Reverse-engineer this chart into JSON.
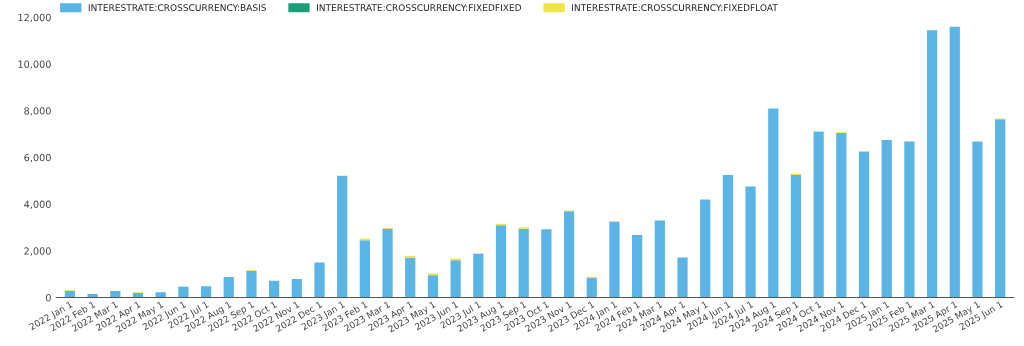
{
  "chart_data": {
    "type": "bar",
    "stacked": true,
    "legend": "top left",
    "grid": false,
    "categories": [
      "2022 Jan 1",
      "2022 Feb 1",
      "2022 Mar 1",
      "2022 Apr 1",
      "2022 May 1",
      "2022 Jun 1",
      "2022 Jul 1",
      "2022 Aug 1",
      "2022 Sep 1",
      "2022 Oct 1",
      "2022 Nov 1",
      "2022 Dec 1",
      "2023 Jan 1",
      "2023 Feb 1",
      "2023 Mar 1",
      "2023 Apr 1",
      "2023 May 1",
      "2023 Jun 1",
      "2023 Jul 1",
      "2023 Aug 1",
      "2023 Sep 1",
      "2023 Oct 1",
      "2023 Nov 1",
      "2023 Dec 1",
      "2024 Jan 1",
      "2024 Feb 1",
      "2024 Mar 1",
      "2024 Apr 1",
      "2024 May 1",
      "2024 Jun 1",
      "2024 Jul 1",
      "2024 Aug 1",
      "2024 Sep 1",
      "2024 Oct 1",
      "2024 Nov 1",
      "2024 Dec 1",
      "2025 Jan 1",
      "2025 Feb 1",
      "2025 Mar 1",
      "2025 Apr 1",
      "2025 May 1",
      "2025 Jun 1"
    ],
    "series": [
      {
        "name": "INTERESTRATE:CROSSCURRENCY:BASIS",
        "color": "#5ab4e6",
        "values": [
          280,
          150,
          280,
          170,
          230,
          460,
          480,
          880,
          1150,
          720,
          800,
          1500,
          5200,
          2450,
          2950,
          1700,
          950,
          1600,
          1870,
          3100,
          2950,
          2920,
          3700,
          850,
          3250,
          2680,
          3300,
          1720,
          4200,
          5250,
          4750,
          8100,
          5250,
          7100,
          7050,
          6250,
          6750,
          6680,
          11450,
          11600,
          6680,
          7630
        ]
      },
      {
        "name": "INTERESTRATE:CROSSCURRENCY:FIXEDFIXED",
        "color": "#1a9e77",
        "values": [
          null,
          null,
          null,
          20,
          null,
          null,
          null,
          null,
          null,
          null,
          null,
          null,
          null,
          null,
          null,
          null,
          null,
          null,
          null,
          null,
          null,
          null,
          null,
          null,
          null,
          null,
          null,
          null,
          null,
          null,
          null,
          null,
          null,
          null,
          null,
          null,
          null,
          null,
          null,
          null,
          null,
          null
        ]
      },
      {
        "name": "INTERESTRATE:CROSSCURRENCY:FIXEDFLOAT",
        "color": "#f0e442",
        "values": [
          30,
          null,
          null,
          40,
          null,
          null,
          null,
          null,
          30,
          null,
          null,
          null,
          30,
          80,
          30,
          80,
          80,
          70,
          30,
          50,
          50,
          null,
          30,
          40,
          30,
          null,
          null,
          null,
          null,
          null,
          null,
          null,
          50,
          30,
          30,
          30,
          null,
          null,
          null,
          null,
          null,
          40
        ]
      }
    ],
    "ylim": [
      0,
      12000
    ],
    "yticks": [
      {
        "value": 0,
        "label": "0"
      },
      {
        "value": 2000,
        "label": "2,000"
      },
      {
        "value": 4000,
        "label": "4,000"
      },
      {
        "value": 6000,
        "label": "6,000"
      },
      {
        "value": 8000,
        "label": "8,000"
      },
      {
        "value": 10000,
        "label": "10,000"
      },
      {
        "value": 12000,
        "label": "12,000"
      }
    ]
  }
}
